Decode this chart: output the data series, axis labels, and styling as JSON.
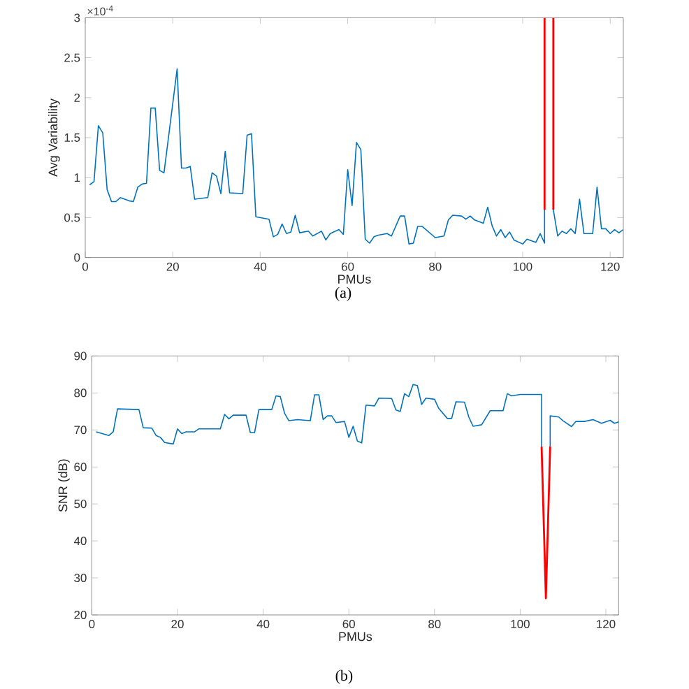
{
  "chart_data": [
    {
      "type": "line",
      "xlabel": "PMUs",
      "ylabel": "Avg Variability",
      "xlim": [
        0,
        123
      ],
      "ylim": [
        0,
        3
      ],
      "xticks": [
        0,
        20,
        40,
        60,
        80,
        100,
        120
      ],
      "yticks": [
        0,
        0.5,
        1,
        1.5,
        2,
        2.5,
        3
      ],
      "annotations": [
        "×10$^{-4}$",
        "(a)"
      ],
      "series": [
        {
          "color": "#0072bd",
          "x": [
            1,
            2,
            3,
            4,
            5,
            6,
            7,
            8,
            10,
            11,
            12,
            13,
            14,
            15,
            16,
            17,
            18,
            21,
            22,
            23,
            24,
            25,
            28,
            29,
            30,
            31,
            32,
            33,
            36,
            37,
            38,
            39,
            42,
            43,
            44,
            45,
            46,
            47,
            48,
            49,
            51,
            52,
            54,
            55,
            56,
            58,
            59,
            60,
            61,
            62,
            63,
            64,
            65,
            66,
            67,
            69,
            70,
            72,
            73,
            74,
            75,
            76,
            77,
            80,
            82,
            83,
            84,
            86,
            87,
            88,
            89,
            91,
            92,
            93,
            94,
            95,
            96,
            97,
            98,
            100,
            101,
            103,
            104,
            105,
            105,
            106,
            107,
            108,
            109,
            110,
            111,
            112,
            113,
            114,
            116,
            117,
            118,
            119,
            120,
            121,
            122,
            123
          ],
          "values": [
            0.91,
            0.95,
            1.65,
            1.56,
            0.85,
            0.7,
            0.7,
            0.75,
            0.71,
            0.7,
            0.88,
            0.92,
            0.93,
            1.87,
            1.87,
            1.09,
            1.06,
            2.36,
            1.12,
            1.12,
            1.14,
            0.73,
            0.75,
            1.06,
            1.02,
            0.8,
            1.33,
            0.81,
            0.8,
            1.53,
            1.55,
            0.51,
            0.48,
            0.26,
            0.29,
            0.42,
            0.3,
            0.32,
            0.53,
            0.31,
            0.33,
            0.27,
            0.33,
            0.22,
            0.3,
            0.35,
            0.29,
            1.1,
            0.65,
            1.44,
            1.35,
            0.23,
            0.18,
            0.26,
            0.28,
            0.3,
            0.27,
            0.52,
            0.52,
            0.17,
            0.18,
            0.39,
            0.39,
            0.25,
            0.27,
            0.47,
            0.53,
            0.52,
            0.48,
            0.52,
            0.47,
            0.43,
            0.63,
            0.4,
            0.27,
            0.35,
            0.25,
            0.32,
            0.22,
            0.17,
            0.23,
            0.19,
            0.3,
            0.18,
            0.6,
            null,
            0.6,
            0.27,
            0.33,
            0.3,
            0.36,
            0.3,
            0.73,
            0.3,
            0.3,
            0.88,
            0.36,
            0.36,
            0.3,
            0.35,
            0.31,
            0.35
          ]
        },
        {
          "color": "#ff0000",
          "x": [
            105,
            105,
            106,
            107,
            107
          ],
          "values": [
            0.6,
            3,
            null,
            3,
            0.6
          ]
        }
      ]
    },
    {
      "type": "line",
      "xlabel": "PMUs",
      "ylabel": "SNR (dB)",
      "xlim": [
        0,
        123
      ],
      "ylim": [
        20,
        90
      ],
      "xticks": [
        0,
        20,
        40,
        60,
        80,
        100,
        120
      ],
      "yticks": [
        20,
        30,
        40,
        50,
        60,
        70,
        80,
        90
      ],
      "annotations": [
        "(b)"
      ],
      "series": [
        {
          "color": "#0072bd",
          "x": [
            1,
            4,
            5,
            6,
            11,
            12,
            14,
            15,
            16,
            17,
            19,
            20,
            21,
            22,
            24,
            25,
            30,
            31,
            32,
            33,
            36,
            37,
            38,
            39,
            42,
            43,
            44,
            45,
            46,
            48,
            51,
            52,
            53,
            54,
            55,
            56,
            57,
            59,
            60,
            61,
            62,
            63,
            64,
            66,
            67,
            70,
            71,
            72,
            73,
            74,
            75,
            76,
            77,
            78,
            80,
            81,
            83,
            84,
            85,
            87,
            88,
            89,
            91,
            93,
            96,
            97,
            98,
            100,
            105,
            105,
            106,
            107,
            107,
            109,
            110,
            112,
            113,
            115,
            117,
            119,
            121,
            122,
            123
          ],
          "values": [
            69.5,
            68.5,
            69.5,
            75.7,
            75.5,
            70.6,
            70.5,
            68.5,
            68,
            66.6,
            66.2,
            70.3,
            69,
            69.5,
            69.5,
            70.3,
            70.3,
            74.2,
            73,
            74,
            74,
            69.3,
            69.3,
            75.5,
            75.5,
            79.2,
            79,
            74.5,
            72.5,
            72.8,
            72.5,
            79.5,
            79.5,
            72.8,
            73.8,
            73.8,
            72,
            72.3,
            68,
            71,
            67,
            66.5,
            76.7,
            76.5,
            78.6,
            78.5,
            75.4,
            75,
            79.8,
            79,
            82.3,
            82,
            76.9,
            78.6,
            78.3,
            75.8,
            73.1,
            73.1,
            77.6,
            77.5,
            73.5,
            71,
            71.4,
            75.2,
            75.2,
            79.8,
            79.2,
            79.6,
            79.6,
            65.5,
            null,
            65.5,
            73.8,
            73.5,
            72.5,
            70.9,
            72.3,
            72.3,
            72.8,
            71.8,
            72.6,
            71.8,
            72.2
          ]
        },
        {
          "color": "#ff0000",
          "x": [
            105,
            106,
            107
          ],
          "values": [
            65.5,
            24.5,
            65.5
          ]
        }
      ]
    }
  ]
}
